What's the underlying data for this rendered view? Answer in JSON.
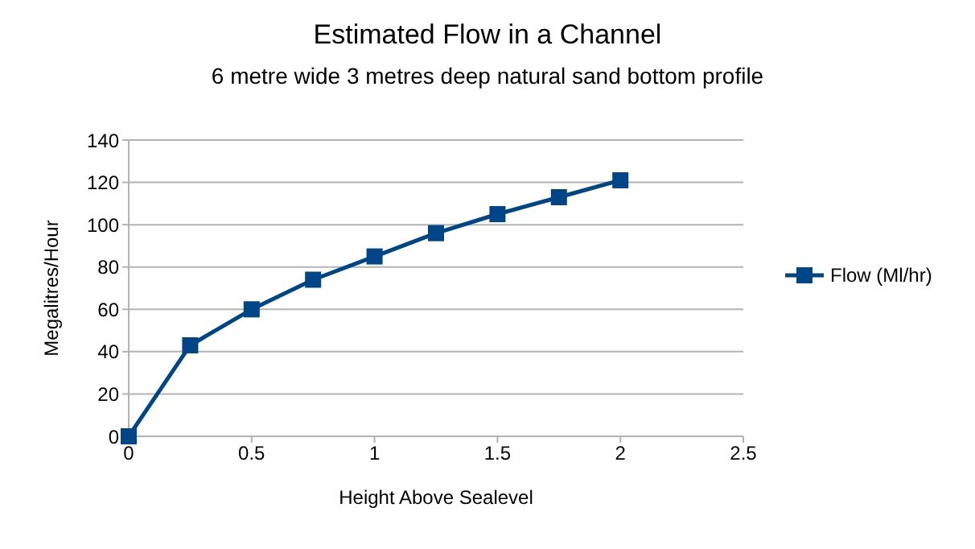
{
  "chart_data": {
    "type": "line",
    "title": "Estimated Flow in a Channel",
    "subtitle": "6 metre wide 3 metres deep natural sand bottom profile",
    "xlabel": "Height Above Sealevel",
    "ylabel": "Megalitres/Hour",
    "x": [
      0,
      0.25,
      0.5,
      0.75,
      1,
      1.25,
      1.5,
      1.75,
      2
    ],
    "series": [
      {
        "name": "Flow (Ml/hr)",
        "color": "#004586",
        "values": [
          0,
          43,
          60,
          74,
          85,
          96,
          105,
          113,
          121
        ]
      }
    ],
    "xlim": [
      0,
      2.5
    ],
    "xticks": [
      0,
      0.5,
      1,
      1.5,
      2,
      2.5
    ],
    "ylim": [
      0,
      140
    ],
    "yticks": [
      0,
      20,
      40,
      60,
      80,
      100,
      120,
      140
    ],
    "grid": "y",
    "legend": "right",
    "marker": "square",
    "line_style": "solid"
  }
}
